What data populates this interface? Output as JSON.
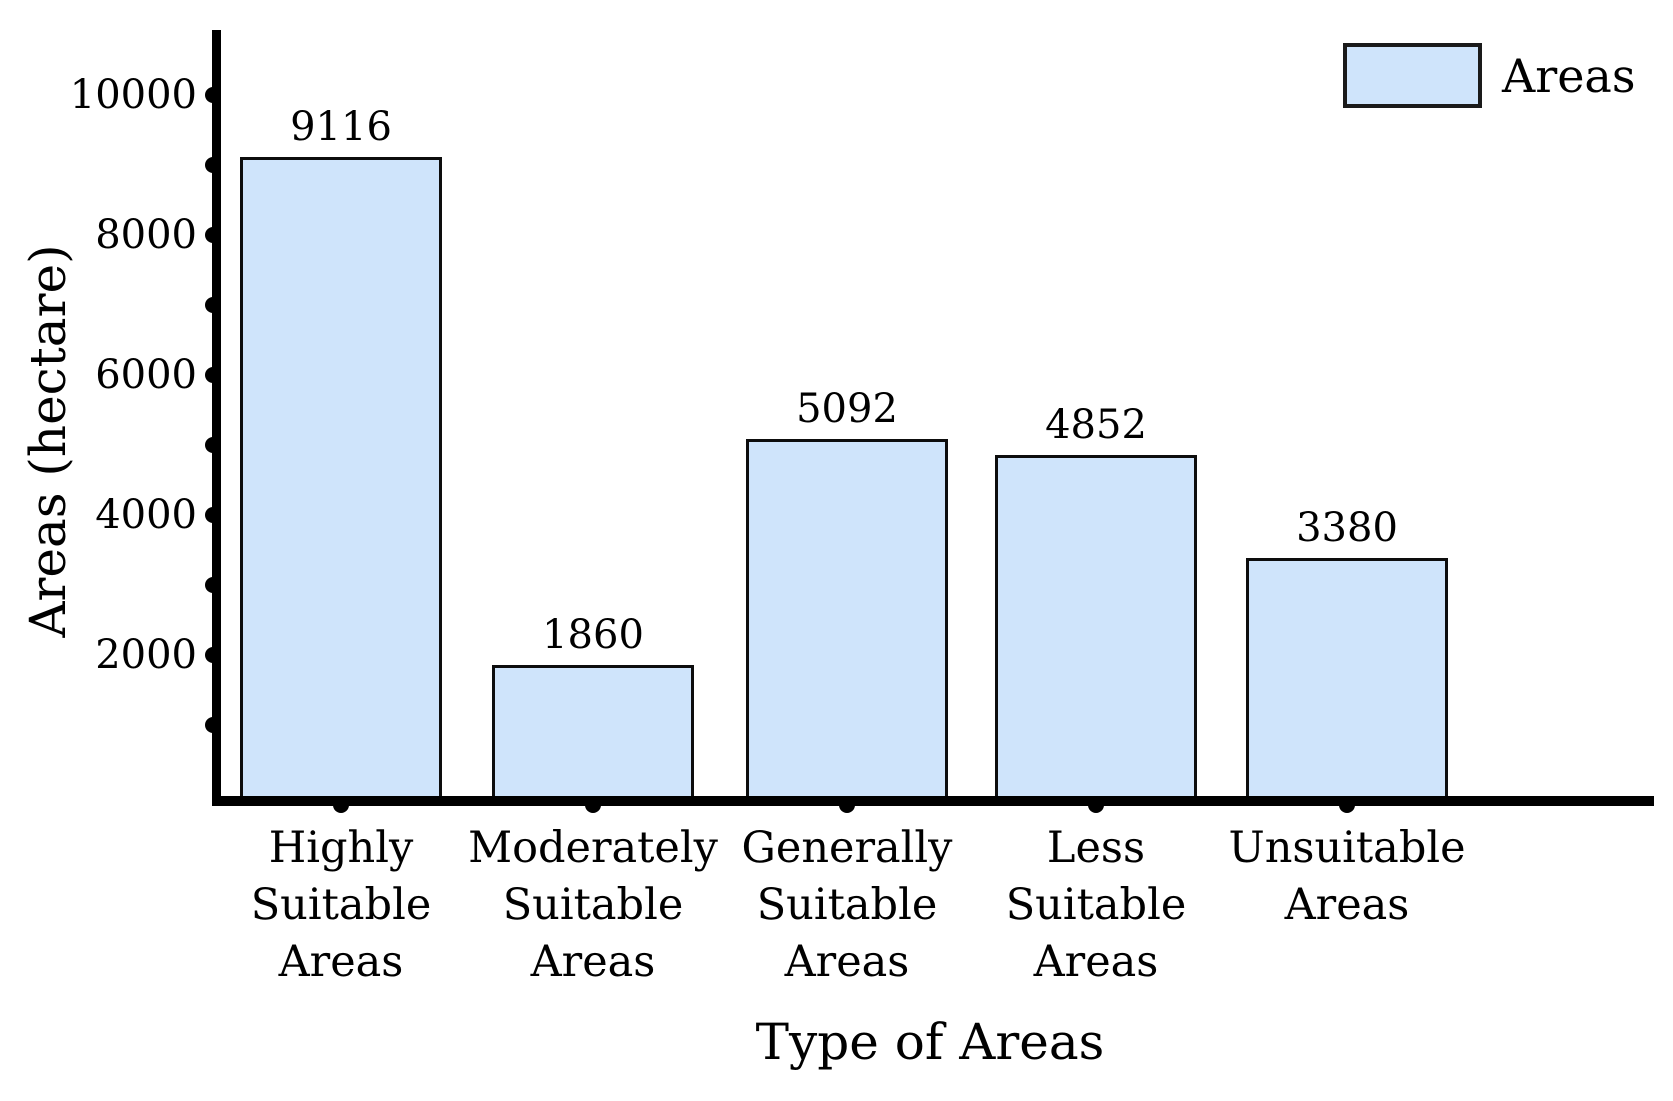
{
  "chart_data": {
    "type": "bar",
    "title": "",
    "categories": [
      "Highly Suitable Areas",
      "Moderately Suitable Areas",
      "Generally Suitable Areas",
      "Less Suitable Areas",
      "Unsuitable Areas"
    ],
    "category_lines": [
      [
        "Highly",
        "Suitable",
        "Areas"
      ],
      [
        "Moderately",
        "Suitable",
        "Areas"
      ],
      [
        "Generally",
        "Suitable",
        "Areas"
      ],
      [
        "Less",
        "Suitable",
        "Areas"
      ],
      [
        "Unsuitable",
        "Areas"
      ]
    ],
    "series": [
      {
        "name": "Areas",
        "values": [
          9116,
          1860,
          5092,
          4852,
          3380
        ]
      }
    ],
    "data_labels": [
      "9116",
      "1860",
      "5092",
      "4852",
      "3380"
    ],
    "xlabel": "Type of Areas",
    "ylabel": "Areas (hectare)",
    "ylim": [
      0,
      10900
    ],
    "yticks": [
      2000,
      4000,
      6000,
      8000,
      10000
    ],
    "ytick_labels": [
      "2000",
      "4000",
      "6000",
      "8000",
      "10000"
    ],
    "minor_yticks": [
      1000,
      3000,
      5000,
      7000,
      9000
    ],
    "grid": false,
    "legend": {
      "label": "Areas",
      "position": "top-right"
    },
    "colors": {
      "bar_fill": "#CFE4FB",
      "bar_border": "#0D0D0D",
      "axis": "#000000",
      "text": "#000000"
    }
  }
}
